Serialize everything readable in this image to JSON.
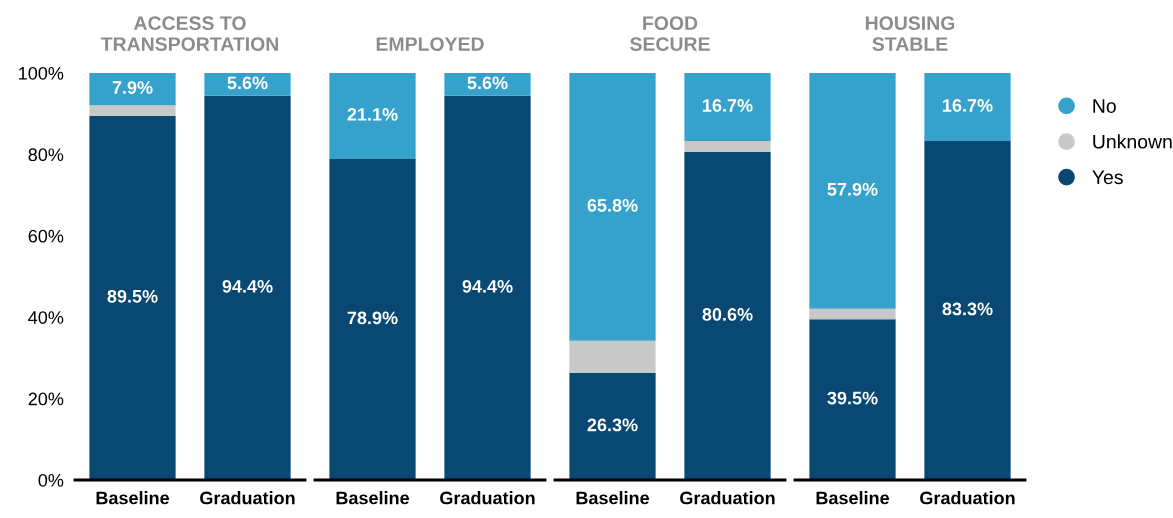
{
  "chart_data": [
    {
      "type": "bar",
      "stacked": true,
      "title": "ACCESS TO\nTRANSPORTATION",
      "categories": [
        "Baseline",
        "Graduation"
      ],
      "ylim": [
        0,
        100
      ],
      "yticks": [
        {
          "value": 0,
          "label": "0%"
        },
        {
          "value": 20,
          "label": "20%"
        },
        {
          "value": 40,
          "label": "40%"
        },
        {
          "value": 60,
          "label": "60%"
        },
        {
          "value": 80,
          "label": "80%"
        },
        {
          "value": 100,
          "label": "100%"
        }
      ],
      "grid": false,
      "legend": false,
      "series": [
        {
          "color": "#084872",
          "values": [
            89.5,
            94.4
          ],
          "value_labels": [
            "89.5%",
            "94.4%"
          ]
        },
        {
          "color": "#c8c8c8",
          "values": [
            2.6,
            0
          ],
          "value_labels": [
            null,
            null
          ]
        },
        {
          "color": "#36a2cb",
          "values": [
            7.9,
            5.6
          ],
          "value_labels": [
            "7.9%",
            "5.6%"
          ]
        }
      ]
    },
    {
      "type": "bar",
      "stacked": true,
      "title": "EMPLOYED",
      "categories": [
        "Baseline",
        "Graduation"
      ],
      "ylim": [
        0,
        100
      ],
      "tick_labels": "x",
      "grid": false,
      "legend": false,
      "series": [
        {
          "color": "#084872",
          "values": [
            78.9,
            94.4
          ],
          "value_labels": [
            "78.9%",
            "94.4%"
          ]
        },
        {
          "color": "#c8c8c8",
          "values": [
            0,
            0
          ],
          "value_labels": [
            null,
            null
          ]
        },
        {
          "color": "#36a2cb",
          "values": [
            21.1,
            5.6
          ],
          "value_labels": [
            "21.1%",
            "5.6%"
          ]
        }
      ]
    },
    {
      "type": "bar",
      "stacked": true,
      "title": "FOOD\nSECURE",
      "categories": [
        "Baseline",
        "Graduation"
      ],
      "ylim": [
        0,
        100
      ],
      "tick_labels": "x",
      "grid": false,
      "legend": false,
      "series": [
        {
          "color": "#084872",
          "values": [
            26.3,
            80.6
          ],
          "value_labels": [
            "26.3%",
            "80.6%"
          ]
        },
        {
          "color": "#c8c8c8",
          "values": [
            7.9,
            2.7
          ],
          "value_labels": [
            null,
            null
          ]
        },
        {
          "color": "#36a2cb",
          "values": [
            65.8,
            16.7
          ],
          "value_labels": [
            "65.8%",
            "16.7%"
          ]
        }
      ]
    },
    {
      "type": "bar",
      "stacked": true,
      "title": "HOUSING\nSTABLE",
      "categories": [
        "Baseline",
        "Graduation"
      ],
      "ylim": [
        0,
        100
      ],
      "tick_labels": "x",
      "grid": false,
      "legend": "right",
      "series": [
        {
          "name": "Yes",
          "color": "#084872",
          "values": [
            39.5,
            83.3
          ],
          "value_labels": [
            "39.5%",
            "83.3%"
          ]
        },
        {
          "name": "Unknown",
          "color": "#c8c8c8",
          "values": [
            2.6,
            0
          ],
          "value_labels": [
            null,
            null
          ]
        },
        {
          "name": "No",
          "color": "#36a2cb",
          "values": [
            57.9,
            16.7
          ],
          "value_labels": [
            "57.9%",
            "16.7%"
          ]
        }
      ]
    }
  ]
}
